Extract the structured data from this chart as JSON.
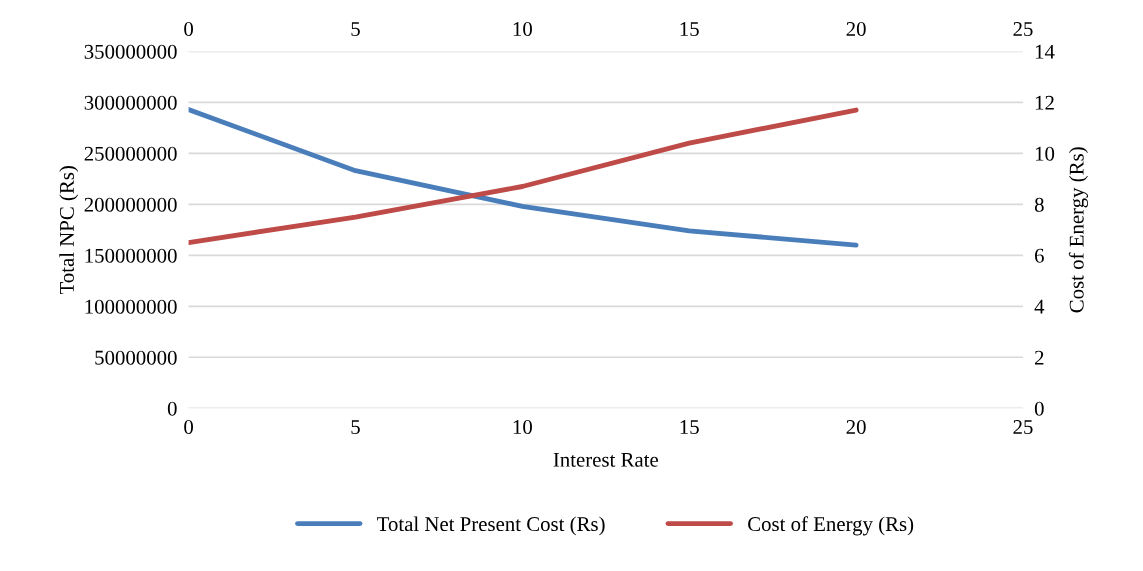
{
  "chart_data": {
    "type": "line",
    "xlabel": "Interest Rate",
    "ylabel": "Total NPC (Rs)",
    "y2label": "Cost of Energy (Rs)",
    "x": [
      0,
      5,
      10,
      15,
      20
    ],
    "series": [
      {
        "name": "Total Net Present Cost (Rs)",
        "color": "#4a7ebb",
        "values": [
          293000000,
          233000000,
          198000000,
          174000000,
          160000000
        ]
      },
      {
        "name": "Cost of Energy (Rs)",
        "color": "#be4b48",
        "axis": "y2",
        "values": [
          6.5,
          7.5,
          8.7,
          10.4,
          11.7
        ]
      }
    ],
    "xlim": [
      0,
      25
    ],
    "xticks": [
      0,
      5,
      10,
      15,
      20,
      25
    ],
    "x2lim": [
      0,
      25
    ],
    "x2ticks": [
      0,
      5,
      10,
      15,
      20,
      25
    ],
    "ylim": [
      0,
      350000000
    ],
    "yticks": [
      0,
      50000000,
      100000000,
      150000000,
      200000000,
      250000000,
      300000000,
      350000000
    ],
    "y2lim": [
      0,
      14
    ],
    "y2ticks": [
      0,
      2,
      4,
      6,
      8,
      10,
      12,
      14
    ],
    "grid": "y",
    "legend": "bottom",
    "marker": "none",
    "line_style": "solid"
  }
}
